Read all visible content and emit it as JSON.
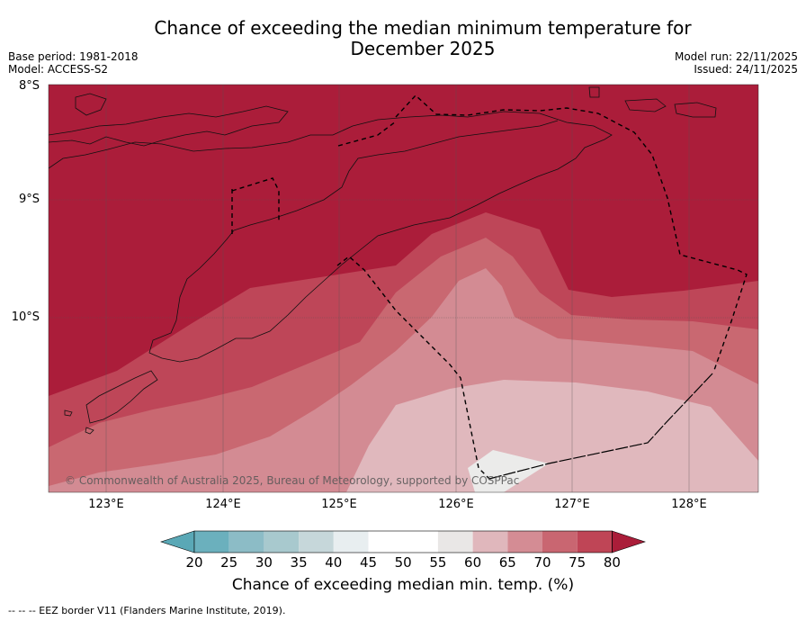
{
  "title_line1": "Chance of exceeding the median minimum temperature for",
  "title_line2": "December 2025",
  "base_period": "Base period: 1981-2018",
  "model": "Model: ACCESS-S2",
  "model_run": "Model run: 22/11/2025",
  "issued": "Issued: 24/11/2025",
  "lat_labels": [
    "8°S",
    "9°S",
    "10°S"
  ],
  "lon_labels": [
    "123°E",
    "124°E",
    "125°E",
    "126°E",
    "127°E",
    "128°E"
  ],
  "copyright": "© Commonwealth of Australia 2025, Bureau of Meteorology, supported by COSPPac",
  "colorbar": {
    "ticks": [
      "20",
      "25",
      "30",
      "35",
      "40",
      "45",
      "50",
      "55",
      "60",
      "65",
      "70",
      "75",
      "80"
    ],
    "label": "Chance of exceeding median min. temp. (%)",
    "colors": [
      "#5aa8b6",
      "#6bb0bd",
      "#8cbcc6",
      "#a8c9ce",
      "#c6d7da",
      "#e8eef0",
      "#ffffff",
      "#ffffff",
      "#e9e7e6",
      "#e0b7bc",
      "#d48c94",
      "#c96671",
      "#bf4556",
      "#aa1d39"
    ]
  },
  "legend_note": "--  --  -- EEZ border V11 (Flanders Marine Institute, 2019).",
  "map_colors": {
    "gt80": "#ab1d3a",
    "p75_80": "#be4658",
    "p70_75": "#c96871",
    "p65_70": "#d38b93",
    "p60_65": "#e0b8bd",
    "p55_60": "#ebebea"
  }
}
